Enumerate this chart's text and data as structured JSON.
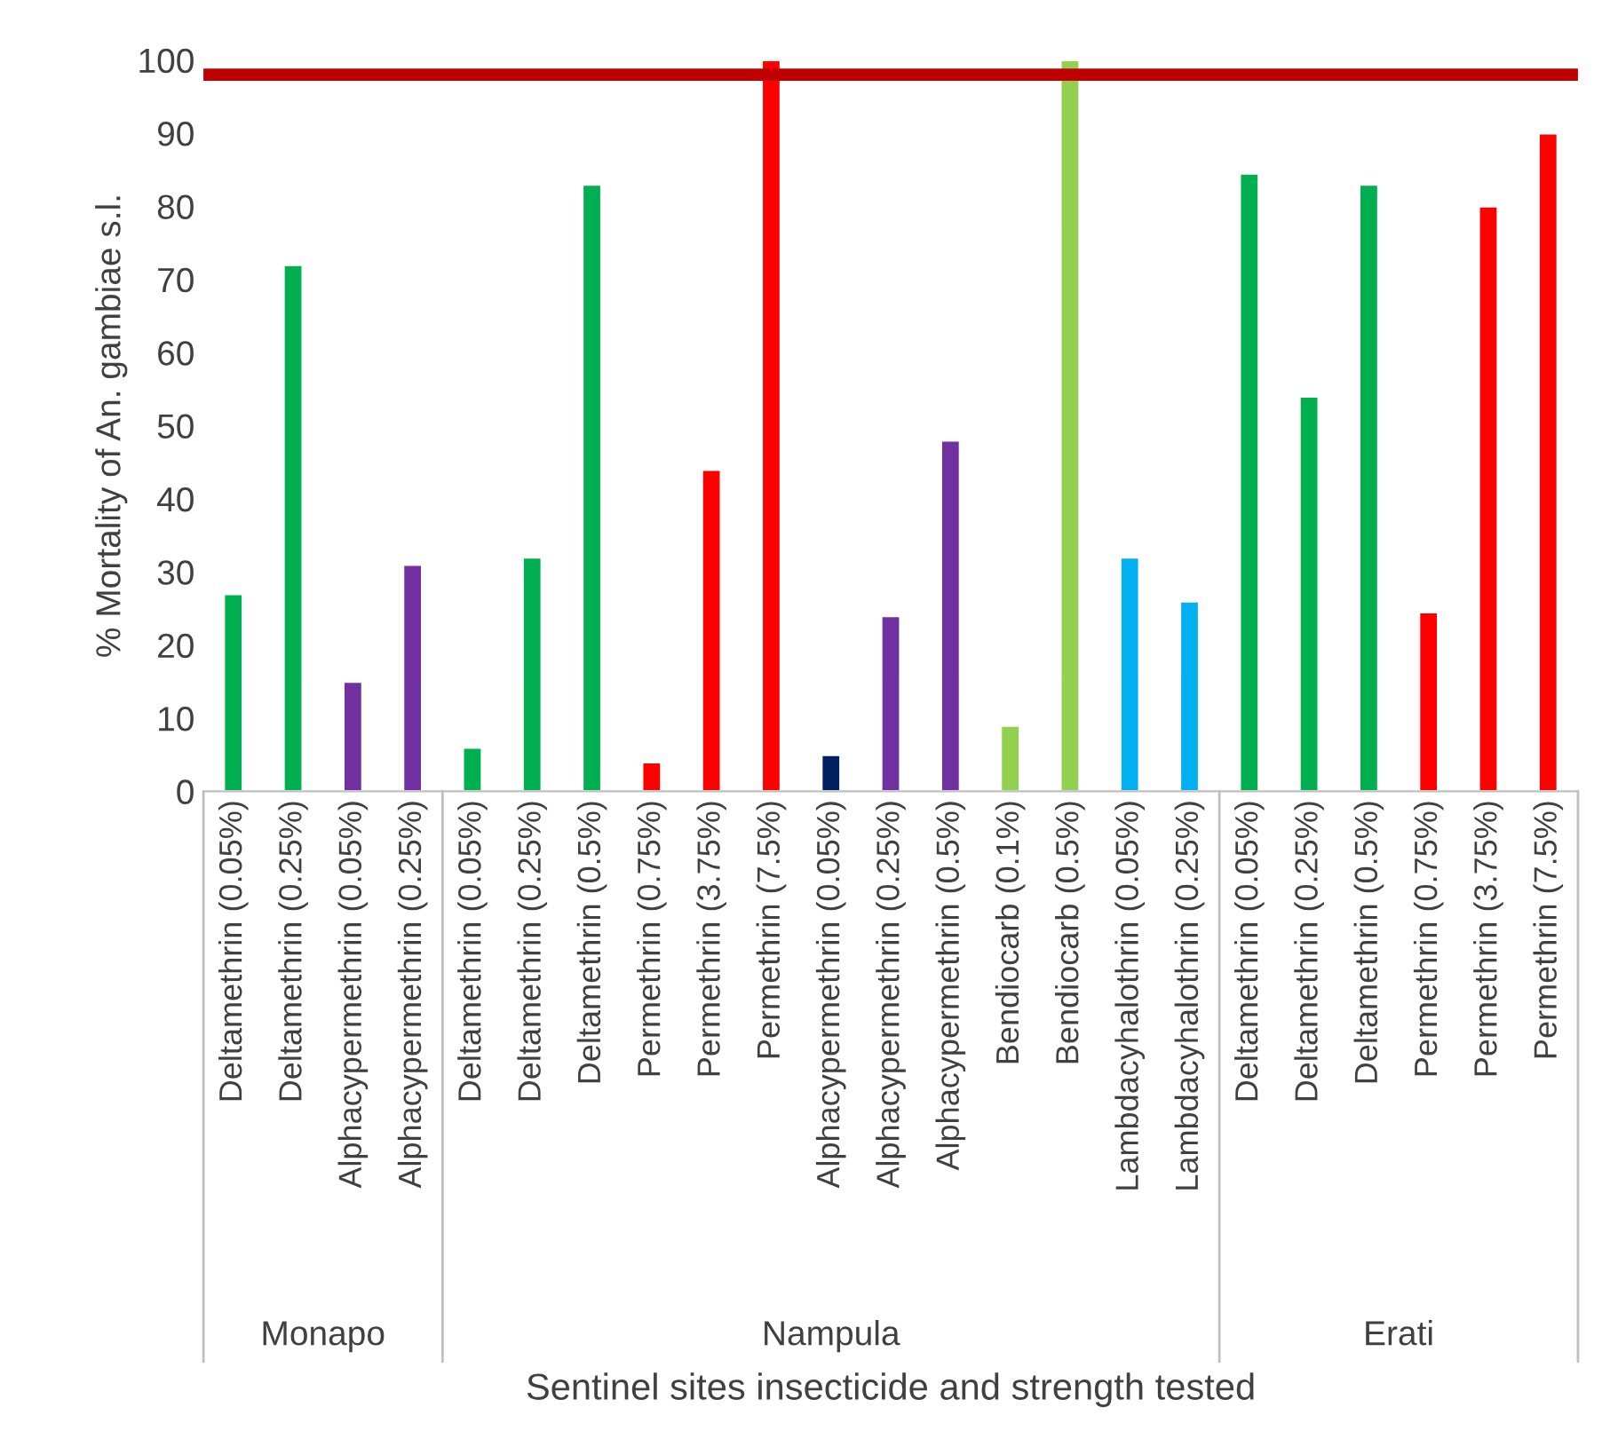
{
  "chart_data": {
    "type": "bar",
    "ylabel": "% Mortality of An. gambiae s.l.",
    "xlabel": "Sentinel sites insecticide and strength tested",
    "categories": [
      "Deltamethrin (0.05%)",
      "Deltamethrin (0.25%)",
      "Alphacypermethrin (0.05%)",
      "Alphacypermethrin (0.25%)",
      "Deltamethrin (0.05%)",
      "Deltamethrin (0.25%)",
      "Deltamethrin (0.5%)",
      "Permethrin (0.75%)",
      "Permethrin (3.75%)",
      "Permethrin (7.5%)",
      "Alphacypermethrin (0.05%)",
      "Alphacypermethrin (0.25%)",
      "Alphacypermethrin (0.5%)",
      "Bendiocarb (0.1%)",
      "Bendiocarb (0.5%)",
      "Lambdacyhalothrin (0.05%)",
      "Lambdacyhalothrin (0.25%)",
      "Deltamethrin (0.05%)",
      "Deltamethrin (0.25%)",
      "Deltamethrin (0.5%)",
      "Permethrin (0.75%)",
      "Permethrin (3.75%)",
      "Permethrin (7.5%)"
    ],
    "values": [
      27,
      72,
      15,
      31,
      6,
      32,
      83,
      4,
      44,
      100,
      5,
      24,
      48,
      9,
      100,
      32,
      26,
      84.5,
      54,
      83,
      24.5,
      80,
      90
    ],
    "colors": [
      "#00b050",
      "#00b050",
      "#7030a0",
      "#7030a0",
      "#00b050",
      "#00b050",
      "#00b050",
      "#ff0000",
      "#ff0000",
      "#ff0000",
      "#002060",
      "#7030a0",
      "#7030a0",
      "#92d050",
      "#92d050",
      "#00b0f0",
      "#00b0f0",
      "#00b050",
      "#00b050",
      "#00b050",
      "#ff0000",
      "#ff0000",
      "#ff0000"
    ],
    "annotations": [
      "Monapo",
      "Nampula",
      "Erati"
    ],
    "ylim": [
      0,
      100
    ],
    "yticks": [
      0,
      10,
      20,
      30,
      40,
      50,
      60,
      70,
      80,
      90,
      100
    ],
    "ref_lines": [
      {
        "axis": "y",
        "value": 98,
        "color": "#c00000"
      }
    ],
    "grid": false
  }
}
